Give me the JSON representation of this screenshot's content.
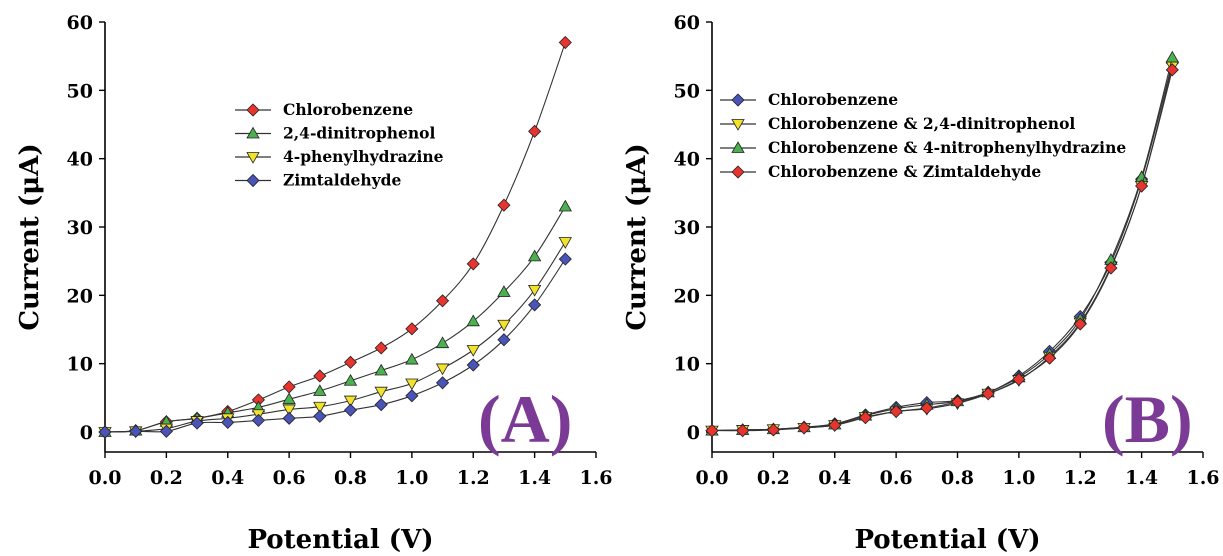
{
  "chart_data": [
    {
      "type": "line",
      "panel_label": "(A)",
      "xlabel": "Potential (V)",
      "ylabel": "Current (μA)",
      "xlim": [
        0,
        1.6
      ],
      "ylim": [
        0,
        60
      ],
      "xticks": [
        "0.0",
        "0.2",
        "0.4",
        "0.6",
        "0.8",
        "1.0",
        "1.2",
        "1.4",
        "1.6"
      ],
      "yticks": [
        "0",
        "10",
        "20",
        "30",
        "40",
        "50",
        "60"
      ],
      "legend_position": "upper-center",
      "x": [
        0.0,
        0.1,
        0.2,
        0.3,
        0.4,
        0.5,
        0.6,
        0.7,
        0.8,
        0.9,
        1.0,
        1.1,
        1.2,
        1.3,
        1.4,
        1.5
      ],
      "series": [
        {
          "name": "Chlorobenzene",
          "color": "#e8342e",
          "marker": "diamond",
          "values": [
            0,
            0.2,
            1.5,
            2.0,
            3.0,
            4.7,
            6.6,
            8.2,
            10.2,
            12.3,
            15.1,
            19.2,
            24.6,
            33.2,
            44.0,
            57.0
          ]
        },
        {
          "name": "2,4-dinitrophenol",
          "color": "#4caf50",
          "marker": "triangle-up",
          "values": [
            0,
            0.2,
            1.5,
            2.0,
            2.8,
            3.6,
            4.8,
            6.0,
            7.5,
            9.0,
            10.6,
            13.0,
            16.2,
            20.5,
            25.7,
            33.0
          ]
        },
        {
          "name": "4-phenylhydrazine",
          "color": "#f2e22c",
          "marker": "triangle-down",
          "values": [
            0,
            0.1,
            0.5,
            1.6,
            2.0,
            2.6,
            3.3,
            3.7,
            4.6,
            5.9,
            7.1,
            9.3,
            12.0,
            15.7,
            20.8,
            27.8
          ]
        },
        {
          "name": "Zimtaldehyde",
          "color": "#4a54b8",
          "marker": "diamond",
          "values": [
            0,
            0.1,
            0.1,
            1.3,
            1.4,
            1.7,
            2.0,
            2.3,
            3.2,
            4.0,
            5.3,
            7.2,
            9.8,
            13.5,
            18.6,
            25.3
          ]
        }
      ]
    },
    {
      "type": "line",
      "panel_label": "(B)",
      "xlabel": "Potential (V)",
      "ylabel": "Current (μA)",
      "xlim": [
        0,
        1.6
      ],
      "ylim": [
        0,
        60
      ],
      "xticks": [
        "0.0",
        "0.2",
        "0.4",
        "0.6",
        "0.8",
        "1.0",
        "1.2",
        "1.4",
        "1.6"
      ],
      "yticks": [
        "0",
        "10",
        "20",
        "30",
        "40",
        "50",
        "60"
      ],
      "legend_position": "upper-left",
      "x": [
        0.0,
        0.1,
        0.2,
        0.3,
        0.4,
        0.5,
        0.6,
        0.7,
        0.8,
        0.9,
        1.0,
        1.1,
        1.2,
        1.3,
        1.4,
        1.5
      ],
      "series": [
        {
          "name": "Chlorobenzene",
          "color": "#4a54b8",
          "marker": "diamond",
          "values": [
            0.2,
            0.3,
            0.4,
            0.7,
            1.2,
            2.5,
            3.6,
            4.3,
            4.6,
            5.8,
            8.2,
            11.8,
            16.9,
            24.8,
            37.0,
            54.0
          ]
        },
        {
          "name": "Chlorobenzene & 2,4-dinitrophenol",
          "color": "#f2e22c",
          "marker": "triangle-down",
          "values": [
            0.2,
            0.3,
            0.4,
            0.6,
            1.0,
            2.2,
            3.0,
            3.4,
            4.2,
            5.6,
            7.6,
            11.0,
            16.0,
            24.2,
            36.0,
            53.5
          ]
        },
        {
          "name": "Chlorobenzene & 4-nitrophenylhydrazine",
          "color": "#4caf50",
          "marker": "triangle-up",
          "values": [
            0.2,
            0.3,
            0.4,
            0.7,
            1.1,
            2.4,
            3.4,
            4.0,
            4.5,
            5.8,
            8.0,
            11.4,
            16.5,
            25.2,
            37.3,
            54.8
          ]
        },
        {
          "name": "Chlorobenzene & Zimtaldehyde",
          "color": "#e8342e",
          "marker": "diamond",
          "values": [
            0.2,
            0.2,
            0.3,
            0.6,
            1.0,
            2.1,
            3.0,
            3.5,
            4.4,
            5.6,
            7.7,
            10.8,
            15.8,
            24.0,
            36.0,
            53.0
          ]
        }
      ]
    }
  ]
}
